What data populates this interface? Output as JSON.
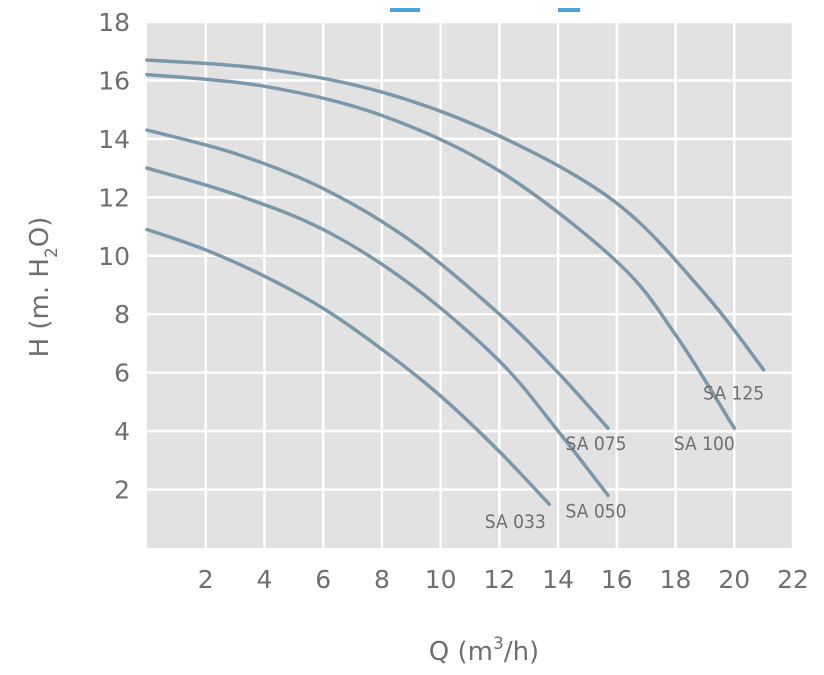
{
  "chart_data": {
    "type": "line",
    "title": "",
    "xlabel": {
      "main": "Q (m",
      "sup": "3",
      "tail": "/h)"
    },
    "ylabel": {
      "main": "H (m. H",
      "sub": "2",
      "tail": "O)"
    },
    "xlim": [
      0,
      22
    ],
    "ylim": [
      0,
      18
    ],
    "xticks": [
      "2",
      "4",
      "6",
      "8",
      "10",
      "12",
      "14",
      "16",
      "18",
      "20",
      "22"
    ],
    "yticks": [
      "2",
      "4",
      "6",
      "8",
      "10",
      "12",
      "14",
      "16",
      "18"
    ],
    "grid": true,
    "colors": {
      "background": "#e2e2e2",
      "grid": "#ffffff",
      "curve": "#7b98ab",
      "text": "#6f6f6f"
    },
    "series": [
      {
        "name": "SA 125",
        "x": [
          0,
          4,
          8,
          12,
          16,
          19,
          21
        ],
        "y": [
          16.7,
          16.4,
          15.6,
          14.1,
          11.8,
          8.7,
          6.1
        ]
      },
      {
        "name": "SA 100",
        "x": [
          0,
          4,
          8,
          12,
          16,
          18,
          20
        ],
        "y": [
          16.2,
          15.8,
          14.8,
          12.9,
          9.8,
          7.3,
          4.1
        ]
      },
      {
        "name": "SA 075",
        "x": [
          0,
          3,
          6,
          9,
          12,
          14,
          15.7
        ],
        "y": [
          14.3,
          13.5,
          12.3,
          10.5,
          8.0,
          6.0,
          4.1
        ]
      },
      {
        "name": "SA 050",
        "x": [
          0,
          3,
          6,
          9,
          12,
          14,
          15.7
        ],
        "y": [
          13.0,
          12.1,
          10.9,
          9.0,
          6.4,
          4.0,
          1.8
        ]
      },
      {
        "name": "SA 033",
        "x": [
          0,
          2,
          4,
          6,
          8,
          10,
          12,
          13.7
        ],
        "y": [
          10.9,
          10.2,
          9.3,
          8.2,
          6.8,
          5.2,
          3.3,
          1.5
        ]
      }
    ]
  }
}
